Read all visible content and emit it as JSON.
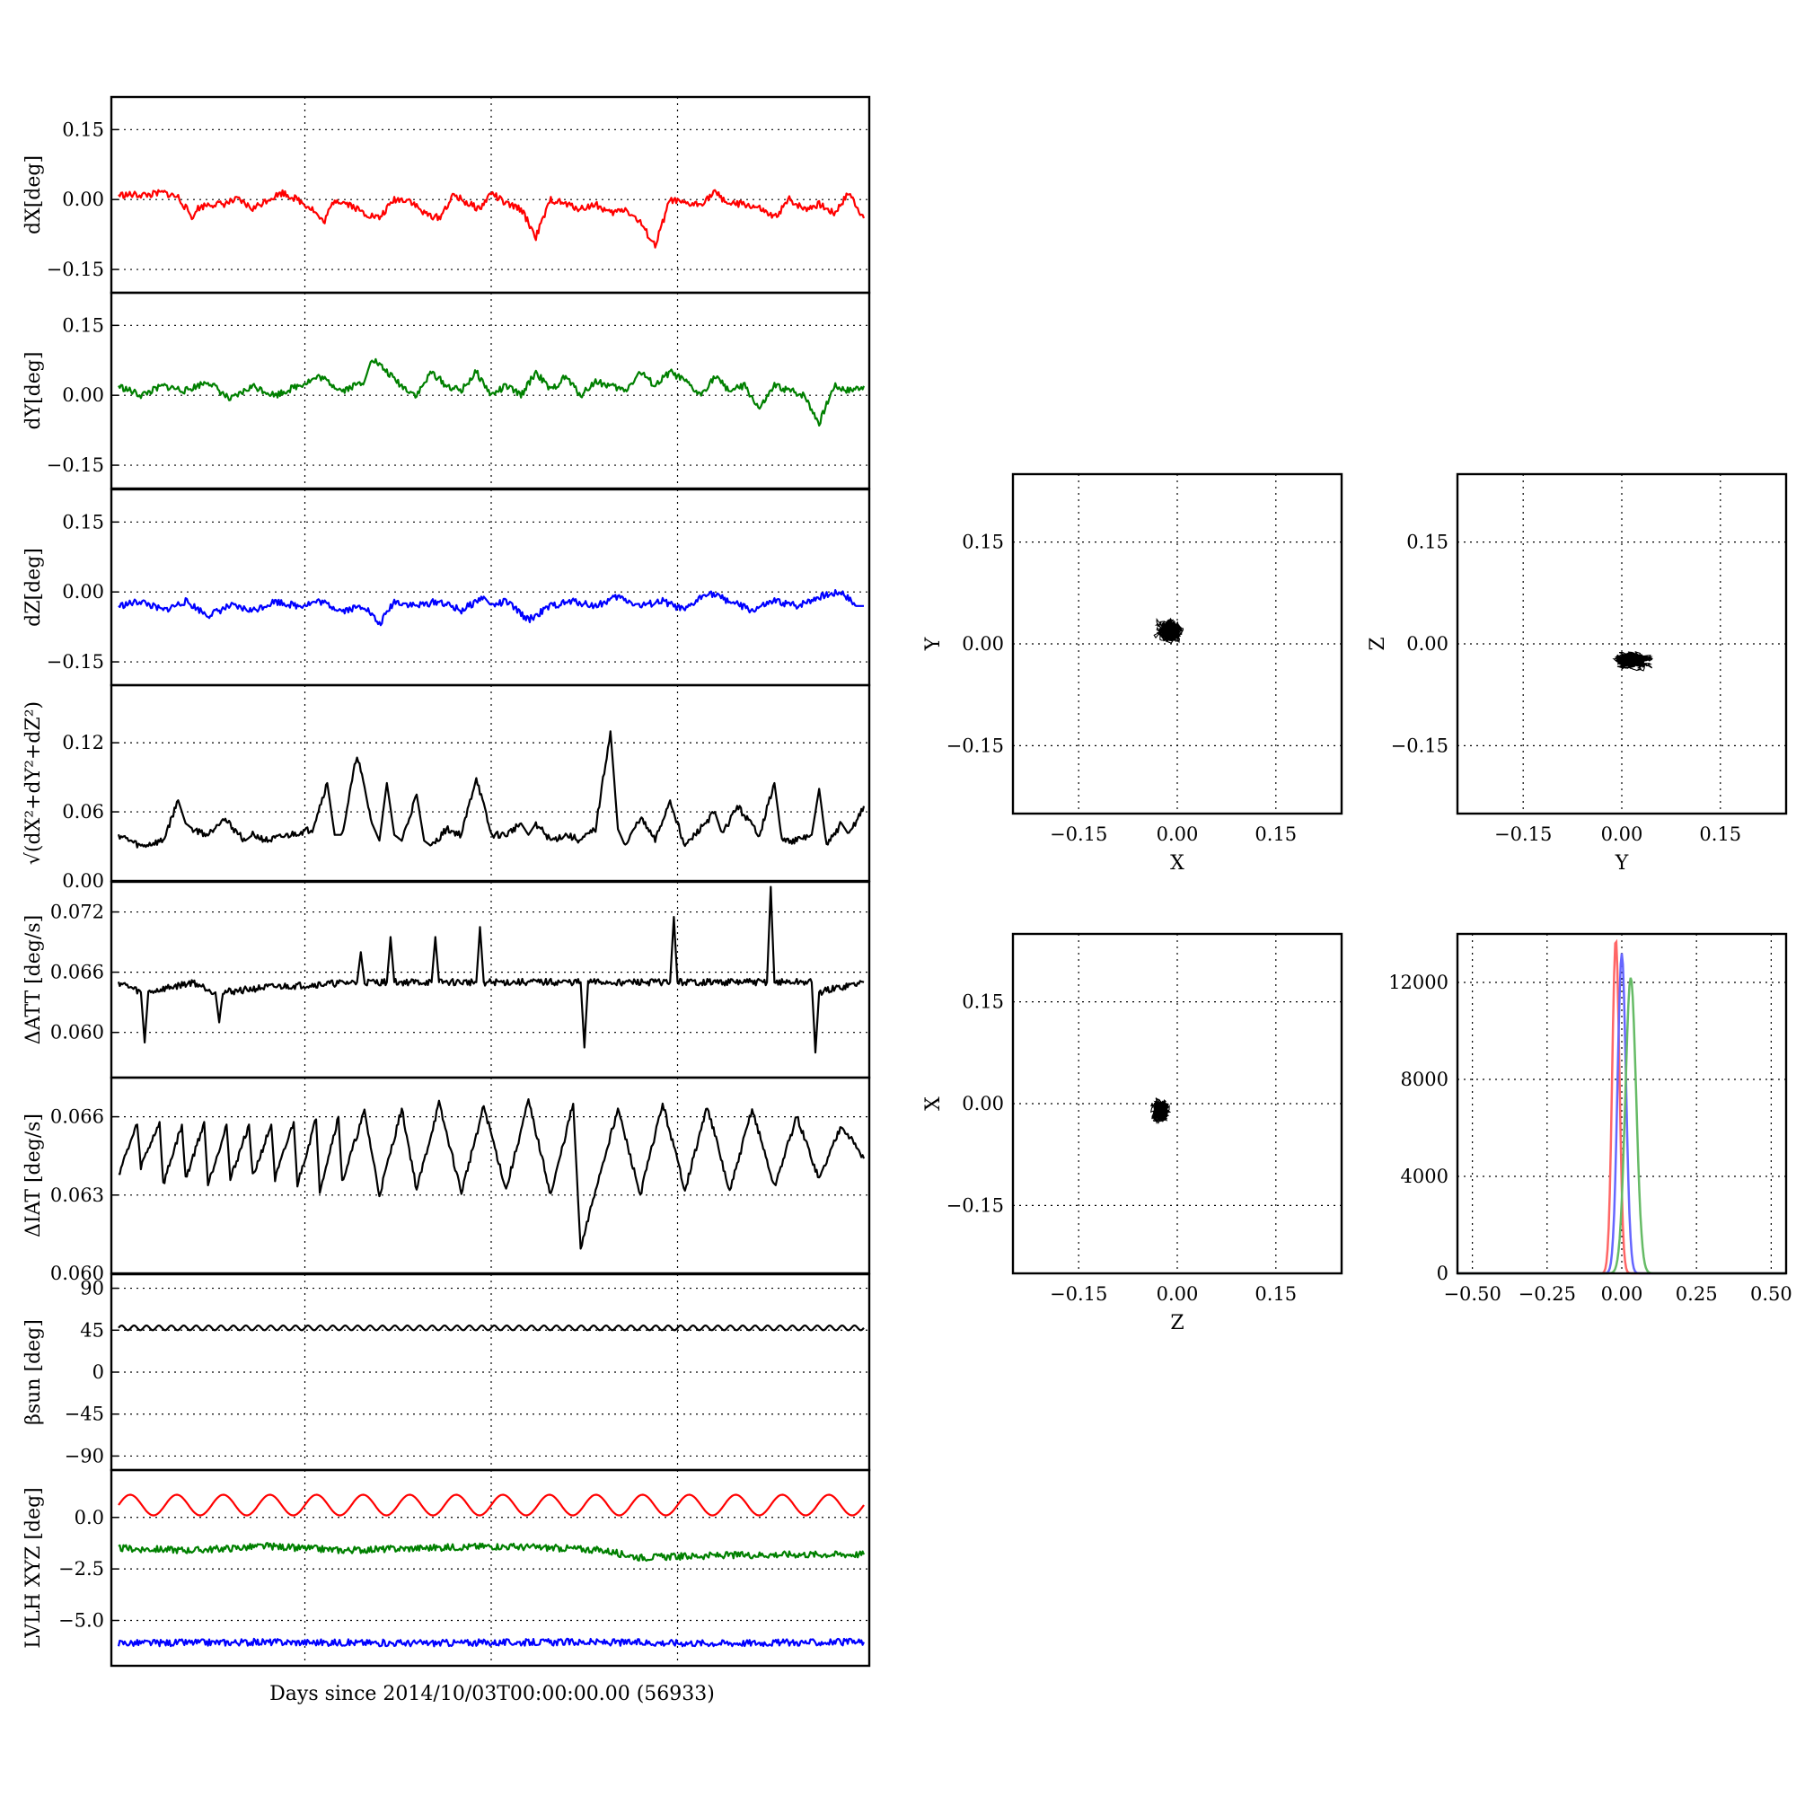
{
  "xlabel": "Days since 2014/10/03T00:00:00.00 (56933)",
  "colors": {
    "x": "#ff0000",
    "y": "#008000",
    "z": "#0000ff",
    "mag": "#000000"
  },
  "chart_data": [
    {
      "id": "dX",
      "type": "line",
      "ylabel": "dX[deg]",
      "ylim": [
        -0.2,
        0.22
      ],
      "yticks": [
        "0.15",
        "0.00",
        "−0.15"
      ],
      "grid": true,
      "series": [
        {
          "color": "#ff0000",
          "x": [
            0,
            0.4,
            0.6,
            0.8,
            1.0,
            1.05,
            1.2,
            1.4,
            1.6,
            1.8,
            2.0,
            2.2,
            2.4,
            2.6,
            2.75,
            2.9,
            3.1,
            3.3,
            3.5,
            3.7,
            3.9,
            4.1,
            4.3,
            4.5,
            4.7,
            4.85,
            5.0,
            5.2,
            5.4,
            5.6,
            5.8,
            6.0,
            6.2,
            6.4,
            6.6,
            6.8,
            7.0,
            7.2,
            7.4,
            7.6,
            7.8,
            8.0,
            8.2,
            8.4,
            8.6,
            8.8,
            9.0,
            9.2,
            9.4,
            9.6,
            9.8,
            10.0
          ],
          "values": [
            0.01,
            0.01,
            0.015,
            0.005,
            -0.04,
            -0.02,
            -0.01,
            -0.01,
            0.0,
            -0.02,
            0.0,
            0.015,
            0.0,
            -0.02,
            -0.05,
            0.0,
            -0.01,
            -0.03,
            -0.04,
            0.0,
            0.0,
            -0.03,
            -0.04,
            0.01,
            -0.01,
            -0.02,
            0.015,
            -0.01,
            -0.02,
            -0.08,
            0.0,
            -0.01,
            -0.02,
            -0.01,
            -0.03,
            -0.02,
            -0.05,
            -0.1,
            0.0,
            -0.01,
            -0.01,
            0.015,
            -0.01,
            -0.01,
            -0.02,
            -0.04,
            0.0,
            -0.02,
            -0.01,
            -0.03,
            0.015,
            -0.04
          ]
        }
      ]
    },
    {
      "id": "dY",
      "type": "line",
      "ylabel": "dY[deg]",
      "ylim": [
        -0.2,
        0.22
      ],
      "yticks": [
        "0.15",
        "0.00",
        "−0.15"
      ],
      "grid": true,
      "series": [
        {
          "color": "#008000",
          "x": [
            0,
            0.3,
            0.6,
            0.9,
            1.2,
            1.5,
            1.8,
            2.1,
            2.4,
            2.7,
            3.0,
            3.3,
            3.4,
            3.6,
            3.8,
            4.0,
            4.2,
            4.4,
            4.6,
            4.8,
            5.0,
            5.2,
            5.4,
            5.6,
            5.8,
            6.0,
            6.2,
            6.4,
            6.6,
            6.8,
            7.0,
            7.2,
            7.4,
            7.6,
            7.8,
            8.0,
            8.2,
            8.4,
            8.6,
            8.8,
            9.0,
            9.2,
            9.4,
            9.6,
            9.8,
            10.0
          ],
          "values": [
            0.02,
            0.0,
            0.02,
            0.01,
            0.03,
            -0.01,
            0.02,
            0.0,
            0.02,
            0.04,
            0.01,
            0.03,
            0.08,
            0.05,
            0.02,
            0.0,
            0.05,
            0.02,
            0.01,
            0.05,
            0.0,
            0.02,
            0.0,
            0.05,
            0.01,
            0.04,
            0.0,
            0.03,
            0.02,
            0.01,
            0.05,
            0.02,
            0.05,
            0.03,
            0.0,
            0.04,
            0.01,
            0.02,
            -0.03,
            0.02,
            0.01,
            0.0,
            -0.06,
            0.02,
            0.01,
            0.02
          ]
        }
      ]
    },
    {
      "id": "dZ",
      "type": "line",
      "ylabel": "dZ[deg]",
      "ylim": [
        -0.2,
        0.22
      ],
      "yticks": [
        "0.15",
        "0.00",
        "−0.15"
      ],
      "grid": true,
      "series": [
        {
          "color": "#0000ff",
          "x": [
            0,
            0.3,
            0.6,
            0.9,
            1.2,
            1.5,
            1.8,
            2.1,
            2.4,
            2.7,
            3.0,
            3.3,
            3.5,
            3.7,
            4.0,
            4.3,
            4.6,
            4.9,
            5.0,
            5.2,
            5.5,
            5.8,
            6.1,
            6.4,
            6.7,
            7.0,
            7.3,
            7.6,
            7.9,
            8.2,
            8.5,
            8.8,
            9.1,
            9.4,
            9.7,
            9.9,
            10.0
          ],
          "values": [
            -0.03,
            -0.02,
            -0.04,
            -0.02,
            -0.05,
            -0.03,
            -0.04,
            -0.02,
            -0.03,
            -0.02,
            -0.04,
            -0.03,
            -0.07,
            -0.02,
            -0.03,
            -0.02,
            -0.04,
            -0.01,
            -0.03,
            -0.02,
            -0.06,
            -0.03,
            -0.02,
            -0.03,
            -0.01,
            -0.03,
            -0.02,
            -0.04,
            0.0,
            -0.02,
            -0.04,
            -0.02,
            -0.03,
            -0.01,
            0.0,
            -0.03,
            -0.03
          ]
        }
      ]
    },
    {
      "id": "dMag",
      "type": "line",
      "ylabel": "√(dX²+dY²+dZ²)",
      "ylim": [
        0.0,
        0.17
      ],
      "yticks": [
        "0.12",
        "0.06",
        "0.00"
      ],
      "grid": true,
      "series": [
        {
          "color": "#000000",
          "x": [
            0,
            0.3,
            0.6,
            0.8,
            0.9,
            1.0,
            1.2,
            1.4,
            1.7,
            1.8,
            2.0,
            2.3,
            2.6,
            2.8,
            2.9,
            3.0,
            3.2,
            3.4,
            3.5,
            3.6,
            3.7,
            3.8,
            4.0,
            4.1,
            4.2,
            4.4,
            4.6,
            4.8,
            5.0,
            5.2,
            5.4,
            5.5,
            5.6,
            5.8,
            6.0,
            6.2,
            6.4,
            6.6,
            6.7,
            6.8,
            7.0,
            7.2,
            7.4,
            7.6,
            7.8,
            8.0,
            8.1,
            8.3,
            8.6,
            8.8,
            8.9,
            9.1,
            9.3,
            9.4,
            9.5,
            9.7,
            9.8,
            10.0
          ],
          "values": [
            0.04,
            0.03,
            0.035,
            0.07,
            0.05,
            0.045,
            0.04,
            0.055,
            0.035,
            0.04,
            0.035,
            0.04,
            0.045,
            0.085,
            0.04,
            0.04,
            0.11,
            0.05,
            0.035,
            0.085,
            0.04,
            0.035,
            0.075,
            0.035,
            0.03,
            0.045,
            0.04,
            0.09,
            0.04,
            0.04,
            0.05,
            0.04,
            0.05,
            0.035,
            0.04,
            0.035,
            0.045,
            0.13,
            0.045,
            0.03,
            0.055,
            0.035,
            0.07,
            0.03,
            0.045,
            0.06,
            0.04,
            0.065,
            0.04,
            0.085,
            0.035,
            0.035,
            0.04,
            0.08,
            0.03,
            0.05,
            0.04,
            0.065
          ]
        }
      ]
    },
    {
      "id": "dATT",
      "type": "line",
      "ylabel": "ΔATT [deg/s]",
      "ylim": [
        0.0555,
        0.075
      ],
      "yticks": [
        "0.072",
        "0.066",
        "0.060"
      ],
      "grid": true,
      "series": [
        {
          "color": "#000000",
          "x": [
            0,
            0.3,
            0.35,
            0.4,
            1.0,
            1.3,
            1.35,
            1.4,
            2.0,
            3.2,
            3.25,
            3.3,
            3.3,
            3.6,
            3.65,
            3.7,
            3.7,
            4.2,
            4.25,
            4.3,
            4.3,
            4.8,
            4.85,
            4.9,
            4.9,
            6.2,
            6.25,
            6.3,
            6.3,
            7.4,
            7.45,
            7.5,
            7.5,
            8.7,
            8.75,
            8.8,
            8.8,
            9.3,
            9.35,
            9.4,
            10.0
          ],
          "values": [
            0.065,
            0.064,
            0.059,
            0.064,
            0.065,
            0.064,
            0.061,
            0.064,
            0.0645,
            0.065,
            0.068,
            0.065,
            0.065,
            0.065,
            0.0695,
            0.065,
            0.065,
            0.065,
            0.0695,
            0.065,
            0.065,
            0.065,
            0.0705,
            0.065,
            0.065,
            0.065,
            0.0585,
            0.065,
            0.065,
            0.065,
            0.0715,
            0.065,
            0.065,
            0.065,
            0.0745,
            0.065,
            0.065,
            0.065,
            0.058,
            0.064,
            0.065
          ]
        }
      ]
    },
    {
      "id": "dIAT",
      "type": "line",
      "ylabel": "ΔIAT [deg/s]",
      "ylim": [
        0.06,
        0.0675
      ],
      "yticks": [
        "0.066",
        "0.063",
        "0.060"
      ],
      "grid": true,
      "series": [
        {
          "color": "#000000",
          "x": [
            0,
            0.25,
            0.3,
            0.55,
            0.6,
            0.85,
            0.9,
            1.15,
            1.2,
            1.45,
            1.5,
            1.75,
            1.8,
            2.05,
            2.1,
            2.35,
            2.4,
            2.65,
            2.7,
            2.95,
            3.0,
            3.3,
            3.5,
            3.8,
            4.0,
            4.3,
            4.6,
            4.9,
            5.2,
            5.5,
            5.8,
            6.1,
            6.2,
            6.4,
            6.7,
            7.0,
            7.3,
            7.6,
            7.9,
            8.2,
            8.5,
            8.8,
            9.1,
            9.4,
            9.7,
            10.0
          ],
          "values": [
            0.0638,
            0.0657,
            0.0641,
            0.0658,
            0.0634,
            0.0657,
            0.0636,
            0.0658,
            0.0634,
            0.0657,
            0.0636,
            0.0657,
            0.0637,
            0.0657,
            0.0636,
            0.0658,
            0.0634,
            0.0659,
            0.0632,
            0.066,
            0.0635,
            0.0662,
            0.063,
            0.0663,
            0.0632,
            0.0665,
            0.0631,
            0.0664,
            0.0632,
            0.0666,
            0.063,
            0.0665,
            0.0609,
            0.0632,
            0.0663,
            0.063,
            0.0665,
            0.0632,
            0.0664,
            0.0631,
            0.0663,
            0.0633,
            0.066,
            0.0636,
            0.0657,
            0.0644
          ]
        }
      ]
    },
    {
      "id": "beta",
      "type": "line",
      "ylabel": "βsun [deg]",
      "ylim": [
        -105,
        105
      ],
      "yticks": [
        "90",
        "45",
        "0",
        "−45",
        "−90"
      ],
      "grid": true,
      "series": [
        {
          "color": "#000000",
          "mean": 47.5,
          "amplitude": 2.5,
          "cycles": 60
        }
      ]
    },
    {
      "id": "lvlh",
      "type": "line",
      "ylabel": "LVLH XYZ [deg]",
      "ylim": [
        -7.2,
        2.3
      ],
      "yticks": [
        "0.0",
        "−2.5",
        "−5.0"
      ],
      "grid": true,
      "series": [
        {
          "color": "#ff0000",
          "mean": 0.6,
          "amplitude": 0.5,
          "cycles": 16
        },
        {
          "color": "#008000",
          "x": [
            0,
            1,
            2,
            3,
            4,
            5,
            6,
            6.5,
            7,
            8,
            9,
            10
          ],
          "values": [
            -1.5,
            -1.6,
            -1.4,
            -1.6,
            -1.5,
            -1.4,
            -1.5,
            -1.6,
            -1.95,
            -1.85,
            -1.8,
            -1.8
          ]
        },
        {
          "color": "#0000ff",
          "x": [
            0,
            2,
            4,
            6,
            8,
            10
          ],
          "values": [
            -6.1,
            -6.05,
            -6.1,
            -6.05,
            -6.1,
            -6.05
          ]
        }
      ]
    },
    {
      "id": "xy",
      "type": "scatter",
      "xlabel": "X",
      "ylabel": "Y",
      "xlim": [
        -0.25,
        0.25
      ],
      "ylim": [
        -0.25,
        0.25
      ],
      "xticks": [
        "−0.15",
        "0.00",
        "0.15"
      ],
      "yticks": [
        "0.15",
        "0.00",
        "−0.15"
      ],
      "center": [
        -0.01,
        0.02
      ],
      "spread": [
        0.03,
        0.03
      ],
      "grid": true
    },
    {
      "id": "yz",
      "type": "scatter",
      "xlabel": "Y",
      "ylabel": "Z",
      "xlim": [
        -0.25,
        0.25
      ],
      "ylim": [
        -0.25,
        0.25
      ],
      "xticks": [
        "−0.15",
        "0.00",
        "0.15"
      ],
      "yticks": [
        "0.15",
        "0.00",
        "−0.15"
      ],
      "center": [
        0.015,
        -0.025
      ],
      "spread": [
        0.045,
        0.02
      ],
      "grid": true
    },
    {
      "id": "zx",
      "type": "scatter",
      "xlabel": "Z",
      "ylabel": "X",
      "xlim": [
        -0.25,
        0.25
      ],
      "ylim": [
        -0.25,
        0.25
      ],
      "xticks": [
        "−0.15",
        "0.00",
        "0.15"
      ],
      "yticks": [
        "0.15",
        "0.00",
        "−0.15"
      ],
      "center": [
        -0.025,
        -0.01
      ],
      "spread": [
        0.02,
        0.03
      ],
      "grid": true
    },
    {
      "id": "hist",
      "type": "histogram",
      "xlim": [
        -0.55,
        0.55
      ],
      "ylim": [
        0,
        14000
      ],
      "xticks": [
        "−0.50",
        "−0.25",
        "0.00",
        "0.25",
        "0.50"
      ],
      "yticks": [
        "12000",
        "8000",
        "4000",
        "0"
      ],
      "grid": true,
      "series": [
        {
          "color": "#ff6666",
          "peak_x": -0.02,
          "peak": 13800,
          "width": 0.012
        },
        {
          "color": "#6666ff",
          "peak_x": 0.0,
          "peak": 13200,
          "width": 0.014
        },
        {
          "color": "#66bb66",
          "peak_x": 0.03,
          "peak": 12200,
          "width": 0.018
        }
      ]
    }
  ]
}
